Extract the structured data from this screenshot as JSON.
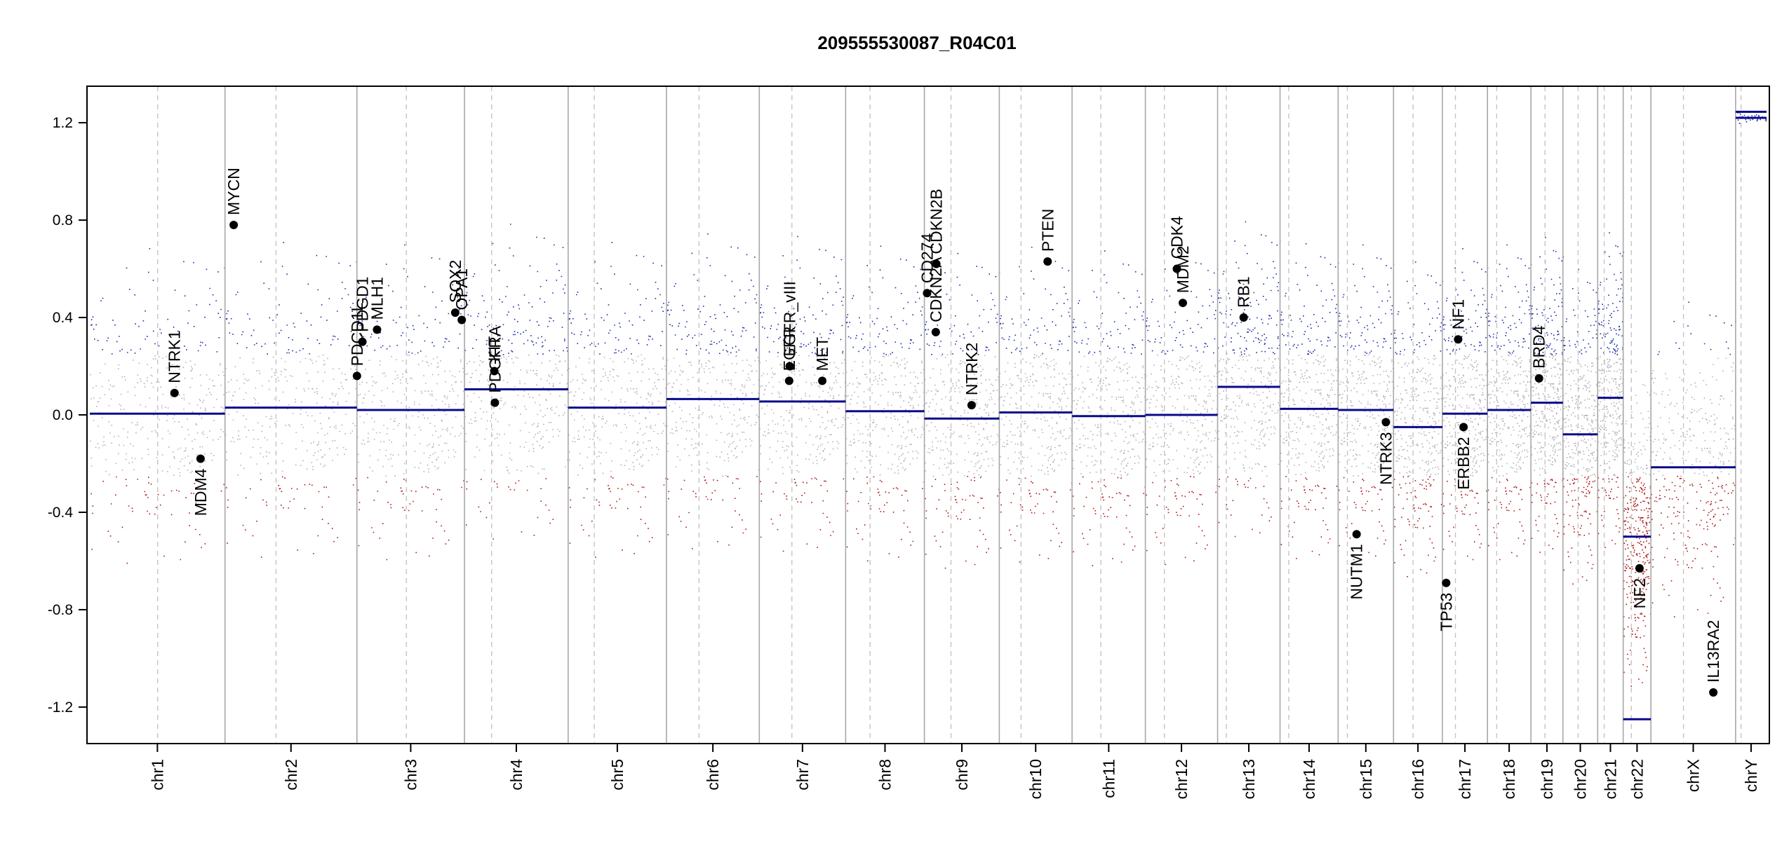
{
  "chart_data": {
    "type": "scatter",
    "title": "209555530087_R04C01",
    "xlabel": "",
    "ylabel": "",
    "ylim": [
      -1.35,
      1.35
    ],
    "yticks": [
      -1.2,
      -0.8,
      -0.4,
      0.0,
      0.4,
      0.8,
      1.2
    ],
    "ytick_labels": [
      "-1.2",
      "-0.8",
      "-0.4",
      "0.0",
      "0.4",
      "0.8",
      "1.2"
    ],
    "grid": false,
    "legend": "none",
    "colors": {
      "gain_points": "#1c2ea8",
      "neutral_points": "#b3b3b3",
      "loss_points": "#b01818",
      "segment_line": "#0a0a8c",
      "chromosome_border": "#a8a8a8",
      "centromere_line": "#c4c4c4",
      "gene_marker": "#000000"
    },
    "chromosomes": [
      {
        "name": "chr1",
        "label": "chr1",
        "start": 0,
        "end": 249,
        "centromere": 125,
        "segments": [
          {
            "start": 0,
            "end": 249,
            "value": 0.005
          }
        ]
      },
      {
        "name": "chr2",
        "label": "chr2",
        "start": 249,
        "end": 492,
        "centromere": 94,
        "segments": [
          {
            "start": 0,
            "end": 243,
            "value": 0.03
          }
        ]
      },
      {
        "name": "chr3",
        "label": "chr3",
        "start": 492,
        "end": 690,
        "centromere": 91,
        "segments": [
          {
            "start": 0,
            "end": 198,
            "value": 0.02
          }
        ]
      },
      {
        "name": "chr4",
        "label": "chr4",
        "start": 690,
        "end": 881,
        "centromere": 50,
        "segments": [
          {
            "start": 0,
            "end": 191,
            "value": 0.105
          }
        ]
      },
      {
        "name": "chr5",
        "label": "chr5",
        "start": 881,
        "end": 1062,
        "centromere": 48,
        "segments": [
          {
            "start": 0,
            "end": 181,
            "value": 0.03
          }
        ]
      },
      {
        "name": "chr6",
        "label": "chr6",
        "start": 1062,
        "end": 1233,
        "centromere": 60,
        "segments": [
          {
            "start": 0,
            "end": 171,
            "value": 0.065
          }
        ]
      },
      {
        "name": "chr7",
        "label": "chr7",
        "start": 1233,
        "end": 1392,
        "centromere": 60,
        "segments": [
          {
            "start": 0,
            "end": 159,
            "value": 0.055
          }
        ]
      },
      {
        "name": "chr8",
        "label": "chr8",
        "start": 1392,
        "end": 1537,
        "centromere": 45,
        "segments": [
          {
            "start": 0,
            "end": 145,
            "value": 0.015
          }
        ]
      },
      {
        "name": "chr9",
        "label": "chr9",
        "start": 1537,
        "end": 1675,
        "centromere": 49,
        "segments": [
          {
            "start": 0,
            "end": 138,
            "value": -0.015
          }
        ]
      },
      {
        "name": "chr10",
        "label": "chr10",
        "start": 1675,
        "end": 1809,
        "centromere": 40,
        "segments": [
          {
            "start": 0,
            "end": 134,
            "value": 0.01
          }
        ]
      },
      {
        "name": "chr11",
        "label": "chr11",
        "start": 1809,
        "end": 1944,
        "centromere": 53,
        "segments": [
          {
            "start": 0,
            "end": 135,
            "value": -0.005
          }
        ]
      },
      {
        "name": "chr12",
        "label": "chr12",
        "start": 1944,
        "end": 2077,
        "centromere": 35,
        "segments": [
          {
            "start": 0,
            "end": 133,
            "value": 0.0
          }
        ]
      },
      {
        "name": "chr13",
        "label": "chr13",
        "start": 2077,
        "end": 2192,
        "centromere": 16,
        "segments": [
          {
            "start": 0,
            "end": 115,
            "value": 0.115
          }
        ]
      },
      {
        "name": "chr14",
        "label": "chr14",
        "start": 2192,
        "end": 2299,
        "centromere": 16,
        "segments": [
          {
            "start": 0,
            "end": 107,
            "value": 0.025
          }
        ]
      },
      {
        "name": "chr15",
        "label": "chr15",
        "start": 2299,
        "end": 2401,
        "centromere": 17,
        "segments": [
          {
            "start": 0,
            "end": 102,
            "value": 0.02
          }
        ]
      },
      {
        "name": "chr16",
        "label": "chr16",
        "start": 2401,
        "end": 2491,
        "centromere": 36,
        "segments": [
          {
            "start": 0,
            "end": 90,
            "value": -0.05
          }
        ]
      },
      {
        "name": "chr17",
        "label": "chr17",
        "start": 2491,
        "end": 2574,
        "centromere": 24,
        "segments": [
          {
            "start": 0,
            "end": 83,
            "value": 0.005
          }
        ]
      },
      {
        "name": "chr18",
        "label": "chr18",
        "start": 2574,
        "end": 2654,
        "centromere": 17,
        "segments": [
          {
            "start": 0,
            "end": 80,
            "value": 0.02
          }
        ]
      },
      {
        "name": "chr19",
        "label": "chr19",
        "start": 2654,
        "end": 2713,
        "centromere": 26,
        "segments": [
          {
            "start": 0,
            "end": 59,
            "value": 0.05
          }
        ]
      },
      {
        "name": "chr20",
        "label": "chr20",
        "start": 2713,
        "end": 2777,
        "centromere": 28,
        "segments": [
          {
            "start": 0,
            "end": 64,
            "value": -0.08
          }
        ]
      },
      {
        "name": "chr21",
        "label": "chr21",
        "start": 2777,
        "end": 2824,
        "centromere": 12,
        "segments": [
          {
            "start": 0,
            "end": 47,
            "value": 0.07
          }
        ]
      },
      {
        "name": "chr22",
        "label": "chr22",
        "start": 2824,
        "end": 2875,
        "centromere": 15,
        "segments": [
          {
            "start": 0,
            "end": 51,
            "value": -0.5
          },
          {
            "start": 0,
            "end": 51,
            "value": -1.25
          }
        ]
      },
      {
        "name": "chrX",
        "label": "chrX",
        "start": 2875,
        "end": 3031,
        "centromere": 60,
        "segments": [
          {
            "start": 0,
            "end": 156,
            "value": -0.215
          }
        ]
      },
      {
        "name": "chrY",
        "label": "chrY",
        "start": 3031,
        "end": 3088,
        "centromere": 10,
        "segments": [
          {
            "start": 0,
            "end": 57,
            "value": 1.22
          },
          {
            "start": 0,
            "end": 57,
            "value": 1.245
          }
        ]
      }
    ],
    "genes": [
      {
        "name": "NTRK1",
        "chr": "chr1",
        "pos": 156,
        "value": 0.09,
        "label_side": "above"
      },
      {
        "name": "MDM4",
        "chr": "chr1",
        "pos": 204,
        "value": -0.18,
        "label_side": "below"
      },
      {
        "name": "MYCN",
        "chr": "chr2",
        "pos": 16,
        "value": 0.78,
        "label_side": "above"
      },
      {
        "name": "PDCD1L",
        "chr": "chr3",
        "pos": 0,
        "value": 0.16,
        "label_side": "above"
      },
      {
        "name": "PDGD1",
        "chr": "chr3",
        "pos": 10,
        "value": 0.3,
        "label_side": "above"
      },
      {
        "name": "MLH1",
        "chr": "chr3",
        "pos": 37,
        "value": 0.35,
        "label_side": "above"
      },
      {
        "name": "SOX2",
        "chr": "chr3",
        "pos": 181,
        "value": 0.42,
        "label_side": "above"
      },
      {
        "name": "OPA1",
        "chr": "chr3",
        "pos": 193,
        "value": 0.39,
        "label_side": "above"
      },
      {
        "name": "KIT",
        "chr": "chr4",
        "pos": 55,
        "value": 0.18,
        "label_side": "above"
      },
      {
        "name": "PDGFRA",
        "chr": "chr4",
        "pos": 56,
        "value": 0.05,
        "label_side": "above"
      },
      {
        "name": "EGFR",
        "chr": "chr7",
        "pos": 55,
        "value": 0.14,
        "label_side": "above"
      },
      {
        "name": "EGFR_vIII",
        "chr": "chr7",
        "pos": 56,
        "value": 0.2,
        "label_side": "above"
      },
      {
        "name": "MET",
        "chr": "chr7",
        "pos": 116,
        "value": 0.14,
        "label_side": "above"
      },
      {
        "name": "CD274",
        "chr": "chr9",
        "pos": 5,
        "value": 0.5,
        "label_side": "above"
      },
      {
        "name": "CDKN2A",
        "chr": "chr9",
        "pos": 21,
        "value": 0.34,
        "label_side": "above"
      },
      {
        "name": "CDKN2B",
        "chr": "chr9",
        "pos": 22,
        "value": 0.62,
        "label_side": "above"
      },
      {
        "name": "NTRK2",
        "chr": "chr9",
        "pos": 87,
        "value": 0.04,
        "label_side": "above"
      },
      {
        "name": "PTEN",
        "chr": "chr10",
        "pos": 89,
        "value": 0.63,
        "label_side": "above"
      },
      {
        "name": "CDK4",
        "chr": "chr12",
        "pos": 58,
        "value": 0.6,
        "label_side": "above"
      },
      {
        "name": "MDM2",
        "chr": "chr12",
        "pos": 69,
        "value": 0.46,
        "label_side": "above"
      },
      {
        "name": "RB1",
        "chr": "chr13",
        "pos": 48,
        "value": 0.4,
        "label_side": "above"
      },
      {
        "name": "NUTM1",
        "chr": "chr15",
        "pos": 34,
        "value": -0.49,
        "label_side": "below"
      },
      {
        "name": "NTRK3",
        "chr": "chr15",
        "pos": 88,
        "value": -0.03,
        "label_side": "below"
      },
      {
        "name": "TP53",
        "chr": "chr17",
        "pos": 7,
        "value": -0.69,
        "label_side": "below"
      },
      {
        "name": "NF1",
        "chr": "chr17",
        "pos": 29,
        "value": 0.31,
        "label_side": "above"
      },
      {
        "name": "ERBB2",
        "chr": "chr17",
        "pos": 39,
        "value": -0.05,
        "label_side": "below"
      },
      {
        "name": "BRD4",
        "chr": "chr19",
        "pos": 15,
        "value": 0.15,
        "label_side": "above"
      },
      {
        "name": "NF2",
        "chr": "chr22",
        "pos": 30,
        "value": -0.63,
        "label_side": "below"
      },
      {
        "name": "IL13RA2",
        "chr": "chrX",
        "pos": 115,
        "value": -1.14,
        "label_side": "above"
      }
    ]
  }
}
